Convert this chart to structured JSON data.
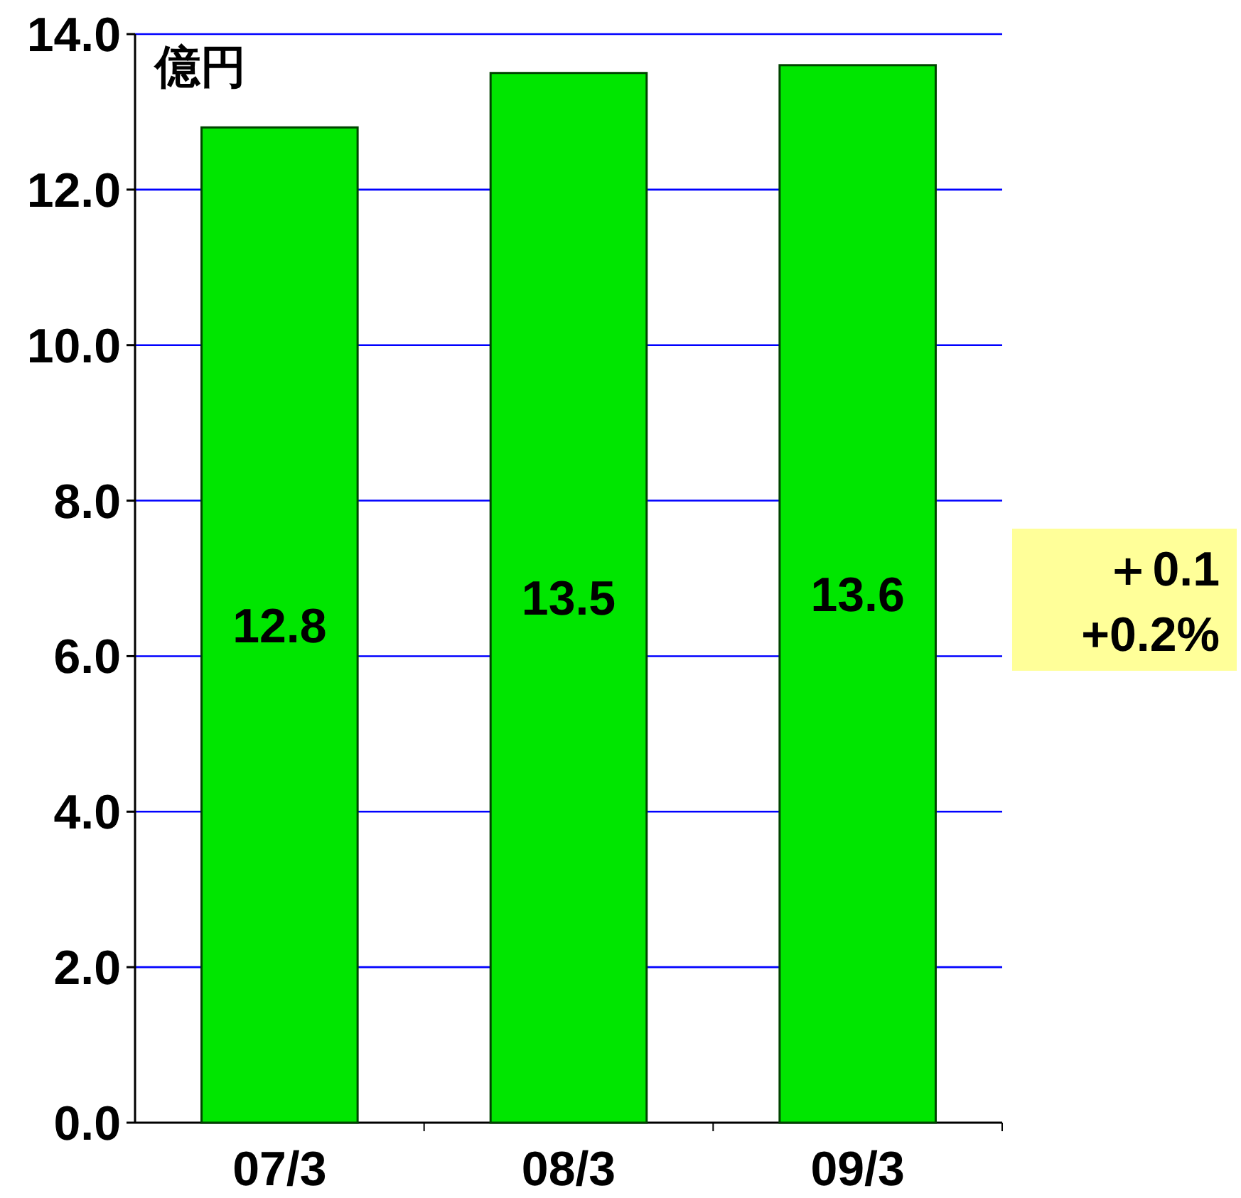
{
  "chart_data": {
    "type": "bar",
    "ylabel": "億円",
    "categories": [
      "07/3",
      "08/3",
      "09/3"
    ],
    "values": [
      12.8,
      13.5,
      13.6
    ],
    "color": "#00e600",
    "data_labels": true,
    "ylim": [
      0,
      14
    ],
    "yticks": [
      {
        "value": 0,
        "label": "0.0"
      },
      {
        "value": 2,
        "label": "2.0"
      },
      {
        "value": 4,
        "label": "4.0"
      },
      {
        "value": 6,
        "label": "6.0"
      },
      {
        "value": 8,
        "label": "8.0"
      },
      {
        "value": 10,
        "label": "10.0"
      },
      {
        "value": 12,
        "label": "12.0"
      },
      {
        "value": 14,
        "label": "14.0"
      }
    ],
    "grid": "y",
    "annotations": [
      "＋0.1",
      "+0.2%"
    ]
  }
}
